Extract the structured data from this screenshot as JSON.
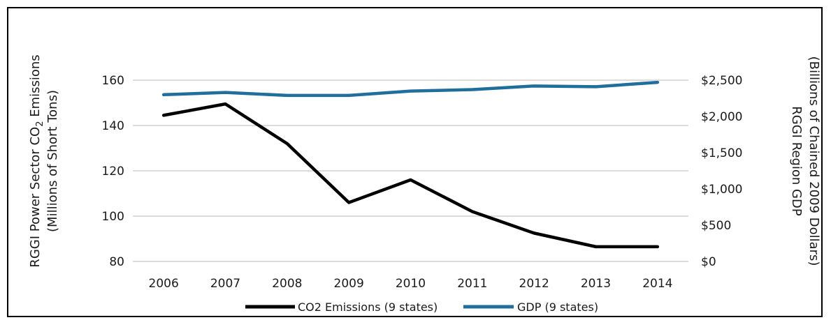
{
  "chart_data": {
    "type": "line",
    "categories": [
      "2006",
      "2007",
      "2008",
      "2009",
      "2010",
      "2011",
      "2012",
      "2013",
      "2014"
    ],
    "series": [
      {
        "name": "CO2 Emissions (9 states)",
        "axis": "left",
        "color": "#000000",
        "values": [
          144.5,
          149.5,
          132,
          106,
          116,
          102,
          92.5,
          86.5,
          86.5
        ]
      },
      {
        "name": "GDP (9 states)",
        "axis": "right",
        "color": "#1f6e9c",
        "values": [
          2300,
          2330,
          2290,
          2290,
          2350,
          2370,
          2420,
          2410,
          2470
        ]
      }
    ],
    "y_left": {
      "label_line1": "RGGI Power Sector CO",
      "label_sub": "2",
      "label_line1_end": " Emissions",
      "label_line2": "(Millions of Short Tons)",
      "range": [
        80,
        160
      ],
      "ticks": [
        "80",
        "100",
        "120",
        "140",
        "160"
      ]
    },
    "y_right": {
      "label_line1": "RGGI Region GDP",
      "label_line2": "(Billions of Chained 2009 Dollars)",
      "range": [
        0,
        2500
      ],
      "ticks": [
        "$0",
        "$500",
        "$1,000",
        "$1,500",
        "$2,000",
        "$2,500"
      ]
    },
    "grid": true,
    "legend_position": "bottom"
  }
}
